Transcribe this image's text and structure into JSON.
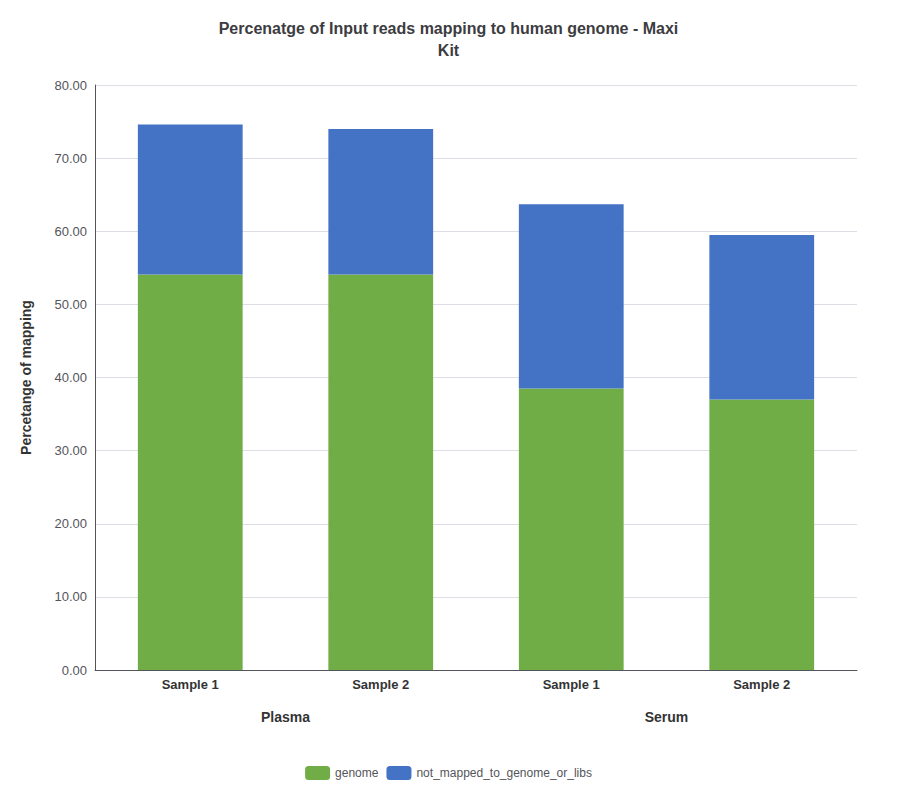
{
  "chart_data": {
    "type": "bar",
    "stacked": true,
    "title": "Percenatge of Input reads mapping to human genome - Maxi\nKit",
    "ylabel": "Percetange of mapping",
    "categories": [
      "Sample 1",
      "Sample 2",
      "Sample 1",
      "Sample 2"
    ],
    "groups": [
      "Plasma",
      "Plasma",
      "Serum",
      "Serum"
    ],
    "series": [
      {
        "name": "genome",
        "color": "#70AD47",
        "values": [
          54.1,
          54.1,
          38.5,
          37.0
        ]
      },
      {
        "name": "not_mapped_to_genome_or_libs",
        "color": "#4472C4",
        "values": [
          20.5,
          19.9,
          25.2,
          22.5
        ]
      }
    ],
    "ylim": [
      0,
      80
    ],
    "yticks": [
      {
        "value": 0,
        "label": "0.00"
      },
      {
        "value": 10,
        "label": "10.00"
      },
      {
        "value": 20,
        "label": "20.00"
      },
      {
        "value": 30,
        "label": "30.00"
      },
      {
        "value": 40,
        "label": "40.00"
      },
      {
        "value": 50,
        "label": "50.00"
      },
      {
        "value": 60,
        "label": "60.00"
      },
      {
        "value": 70,
        "label": "70.00"
      },
      {
        "value": 80,
        "label": "80.00"
      }
    ],
    "grid": true,
    "legend": "bottom"
  }
}
